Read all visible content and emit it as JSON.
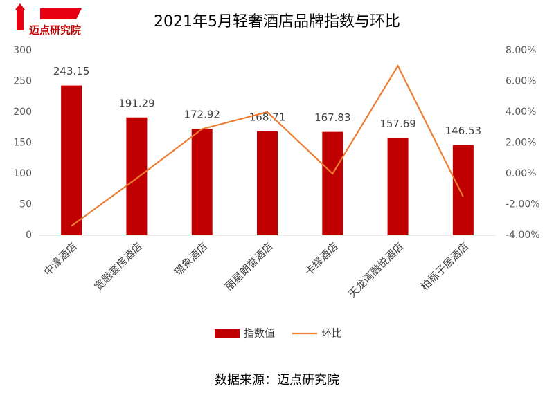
{
  "chart_data": {
    "type": "bar-line",
    "title": "2021年5月轻奢酒店品牌指数与环比",
    "logo": "迈点研究院",
    "source": "数据来源：迈点研究院",
    "categories": [
      "中濠酒店",
      "宽融套房酒店",
      "璟象酒店",
      "丽星朗誉酒店",
      "卡缪酒店",
      "天龙湾融悦酒店",
      "柏栎子居酒店"
    ],
    "series": [
      {
        "name": "指数值",
        "type": "bar",
        "color": "#c00000",
        "values": [
          243.15,
          191.29,
          172.92,
          168.71,
          167.83,
          157.69,
          146.53
        ]
      },
      {
        "name": "环比",
        "type": "line",
        "axis": "y2",
        "color": "#ed7d31",
        "values": [
          -3.4,
          -0.3,
          2.9,
          4.0,
          0.0,
          7.0,
          -1.5
        ]
      }
    ],
    "ylim": [
      0,
      300
    ],
    "yticks": [
      0,
      50,
      100,
      150,
      200,
      250,
      300
    ],
    "y2lim": [
      -4,
      8
    ],
    "y2ticks": [
      {
        "value": -4,
        "label": "-4.00%"
      },
      {
        "value": -2,
        "label": "-2.00%"
      },
      {
        "value": 0,
        "label": "0.00%"
      },
      {
        "value": 2,
        "label": "2.00%"
      },
      {
        "value": 4,
        "label": "4.00%"
      },
      {
        "value": 6,
        "label": "6.00%"
      },
      {
        "value": 8,
        "label": "8.00%"
      }
    ],
    "legend": "bottom"
  }
}
